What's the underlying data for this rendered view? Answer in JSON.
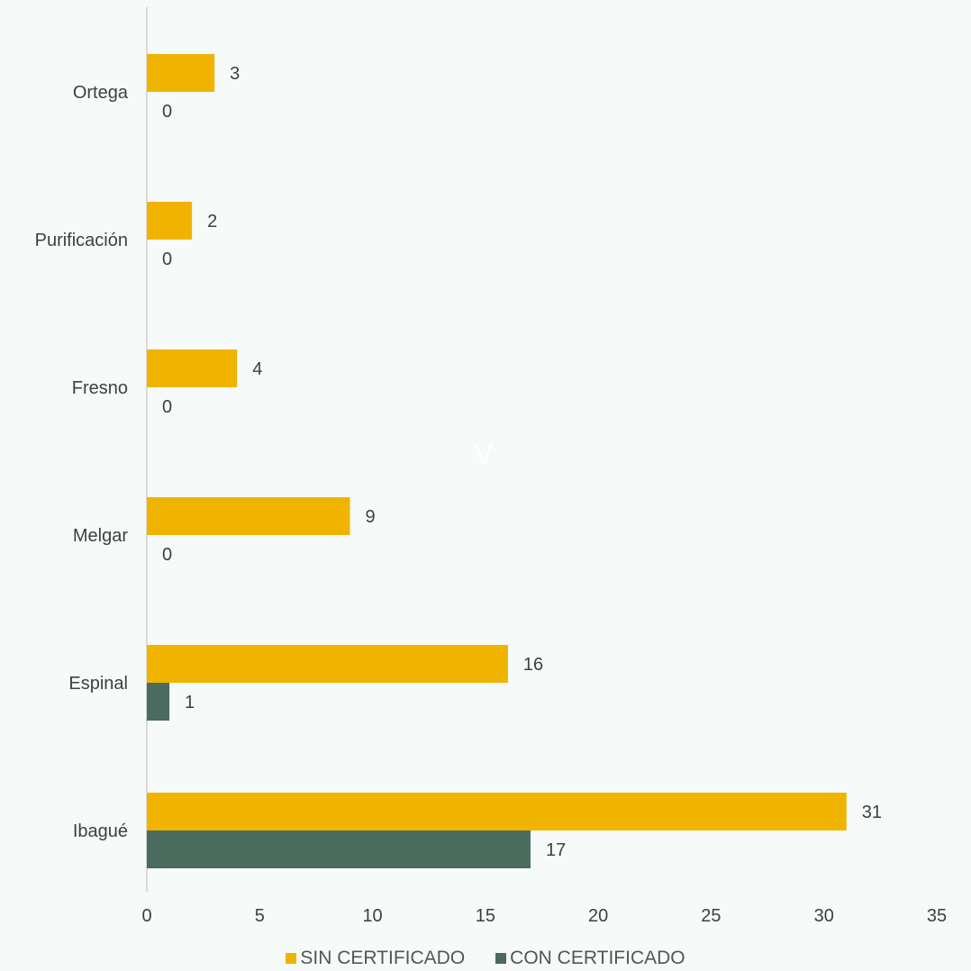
{
  "chart_data": {
    "type": "bar",
    "orientation": "horizontal",
    "categories": [
      "Ortega",
      "Purificación",
      "Fresno",
      "Melgar",
      "Espinal",
      "Ibagué"
    ],
    "series": [
      {
        "name": "SIN CERTIFICADO",
        "color": "#f0b400",
        "values": [
          3,
          2,
          4,
          9,
          16,
          31
        ]
      },
      {
        "name": "CON CERTIFICADO",
        "color": "#4b6b5e",
        "values": [
          0,
          0,
          0,
          0,
          1,
          17
        ]
      }
    ],
    "xlim": [
      0,
      35
    ],
    "xticks": [
      "0",
      "5",
      "10",
      "15",
      "20",
      "25",
      "30",
      "35"
    ],
    "title": "",
    "xlabel": "",
    "ylabel": "",
    "grid": false,
    "legend_position": "bottom",
    "annotation": "V"
  }
}
